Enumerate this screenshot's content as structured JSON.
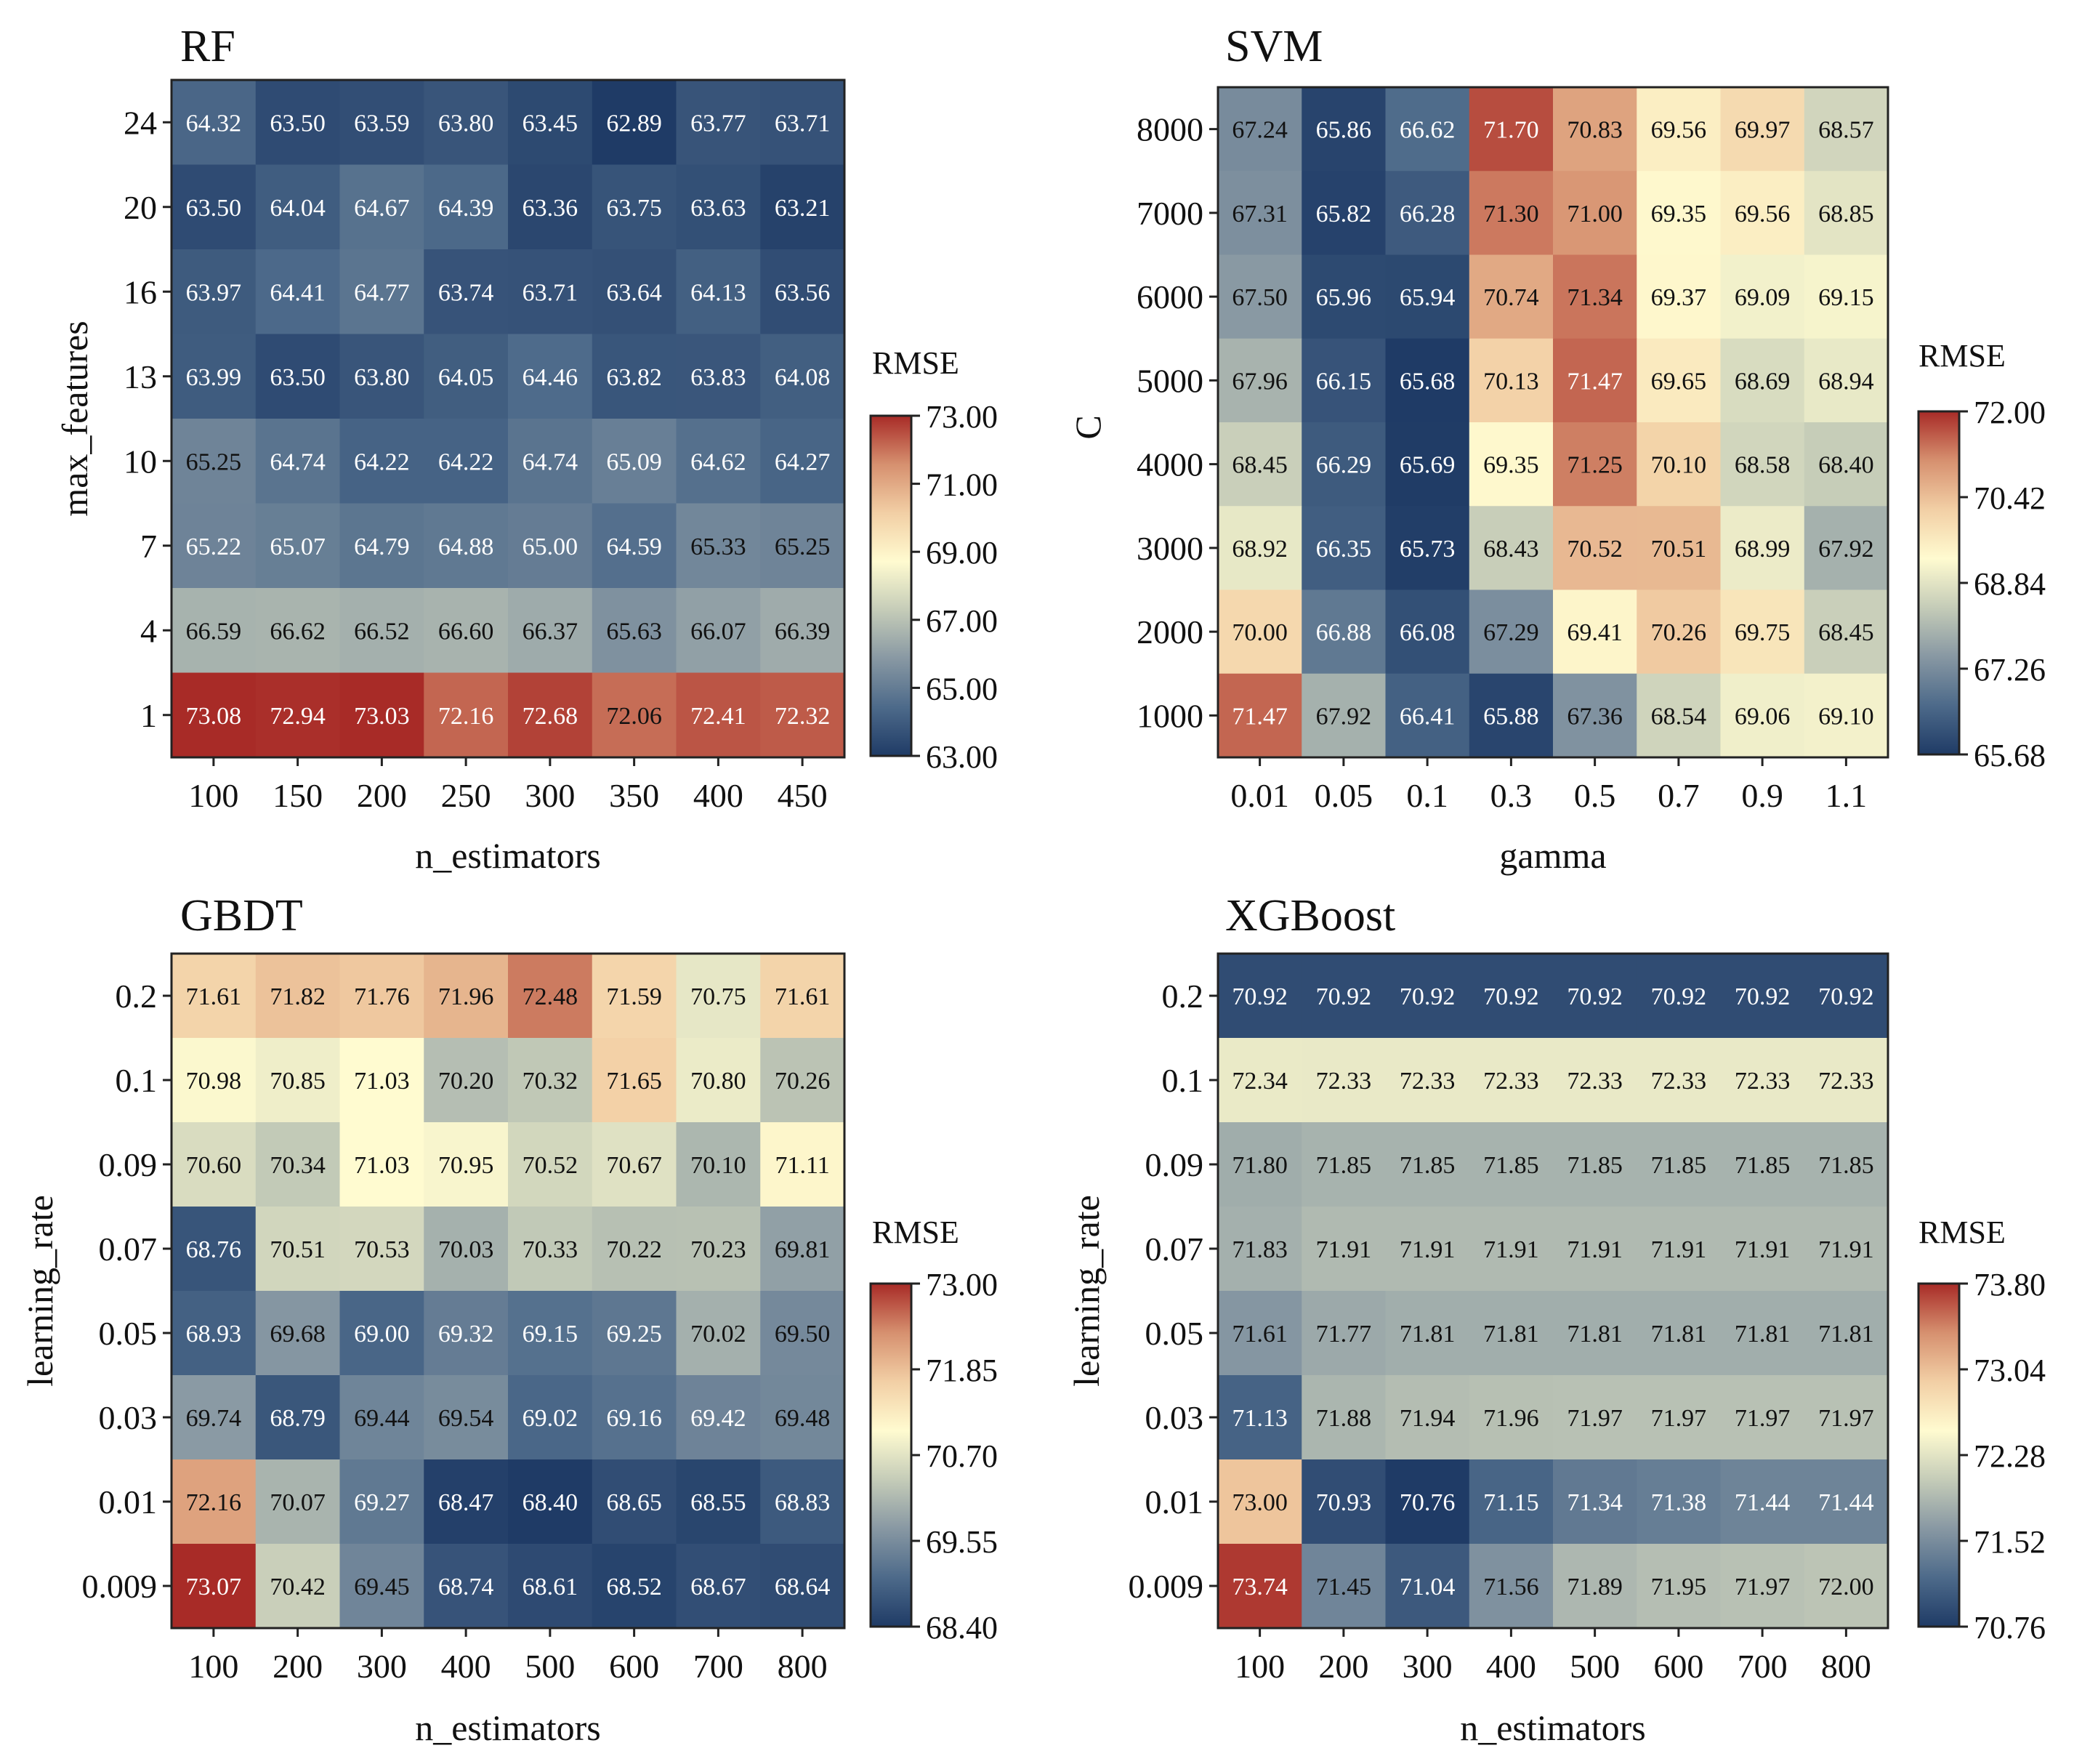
{
  "colormap": [
    "#1f3b66",
    "#4d6a8a",
    "#8898a3",
    "#c5ccb8",
    "#fffbd0",
    "#f2cfa5",
    "#d6906f",
    "#a82b27"
  ],
  "text_colors": {
    "dark": "#ffffff",
    "light": "#111111"
  },
  "chart_data": [
    {
      "id": "rf",
      "type": "heatmap",
      "title": "RF",
      "xlabel": "n_estimators",
      "ylabel": "max_features",
      "x_categories": [
        "100",
        "150",
        "200",
        "250",
        "300",
        "350",
        "400",
        "450"
      ],
      "y_categories": [
        "24",
        "20",
        "16",
        "13",
        "10",
        "7",
        "4",
        "1"
      ],
      "values": [
        [
          64.32,
          63.5,
          63.59,
          63.8,
          63.45,
          62.89,
          63.77,
          63.71
        ],
        [
          63.5,
          64.04,
          64.67,
          64.39,
          63.36,
          63.75,
          63.63,
          63.21
        ],
        [
          63.97,
          64.41,
          64.77,
          63.74,
          63.71,
          63.64,
          64.13,
          63.56
        ],
        [
          63.99,
          63.5,
          63.8,
          64.05,
          64.46,
          63.82,
          63.83,
          64.08
        ],
        [
          65.25,
          64.74,
          64.22,
          64.22,
          64.74,
          65.09,
          64.62,
          64.27
        ],
        [
          65.22,
          65.07,
          64.79,
          64.88,
          65.0,
          64.59,
          65.33,
          65.25
        ],
        [
          66.59,
          66.62,
          66.52,
          66.6,
          66.37,
          65.63,
          66.07,
          66.39
        ],
        [
          73.08,
          72.94,
          73.03,
          72.16,
          72.68,
          72.06,
          72.41,
          72.32
        ]
      ],
      "colorbar": {
        "title": "RMSE",
        "vmin": 63.0,
        "vmax": 73.0,
        "ticks": [
          "63.00",
          "65.00",
          "67.00",
          "69.00",
          "71.00",
          "73.00"
        ]
      }
    },
    {
      "id": "svm",
      "type": "heatmap",
      "title": "SVM",
      "xlabel": "gamma",
      "ylabel": "C",
      "x_categories": [
        "0.01",
        "0.05",
        "0.1",
        "0.3",
        "0.5",
        "0.7",
        "0.9",
        "1.1"
      ],
      "y_categories": [
        "8000",
        "7000",
        "6000",
        "5000",
        "4000",
        "3000",
        "2000",
        "1000"
      ],
      "values": [
        [
          67.24,
          65.86,
          66.62,
          71.7,
          70.83,
          69.56,
          69.97,
          68.57
        ],
        [
          67.31,
          65.82,
          66.28,
          71.3,
          71.0,
          69.35,
          69.56,
          68.85
        ],
        [
          67.5,
          65.96,
          65.94,
          70.74,
          71.34,
          69.37,
          69.09,
          69.15
        ],
        [
          67.96,
          66.15,
          65.68,
          70.13,
          71.47,
          69.65,
          68.69,
          68.94
        ],
        [
          68.45,
          66.29,
          65.69,
          69.35,
          71.25,
          70.1,
          68.58,
          68.4
        ],
        [
          68.92,
          66.35,
          65.73,
          68.43,
          70.52,
          70.51,
          68.99,
          67.92
        ],
        [
          70.0,
          66.88,
          66.08,
          67.29,
          69.41,
          70.26,
          69.75,
          68.45
        ],
        [
          71.47,
          67.92,
          66.41,
          65.88,
          67.36,
          68.54,
          69.06,
          69.1
        ]
      ],
      "colorbar": {
        "title": "RMSE",
        "vmin": 65.68,
        "vmax": 72.0,
        "ticks": [
          "65.68",
          "67.26",
          "68.84",
          "70.42",
          "72.00"
        ]
      }
    },
    {
      "id": "gbdt",
      "type": "heatmap",
      "title": "GBDT",
      "xlabel": "n_estimators",
      "ylabel": "learning_rate",
      "x_categories": [
        "100",
        "200",
        "300",
        "400",
        "500",
        "600",
        "700",
        "800"
      ],
      "y_categories": [
        "0.2",
        "0.1",
        "0.09",
        "0.07",
        "0.05",
        "0.03",
        "0.01",
        "0.009"
      ],
      "values": [
        [
          71.61,
          71.82,
          71.76,
          71.96,
          72.48,
          71.59,
          70.75,
          71.61
        ],
        [
          70.98,
          70.85,
          71.03,
          70.2,
          70.32,
          71.65,
          70.8,
          70.26
        ],
        [
          70.6,
          70.34,
          71.03,
          70.95,
          70.52,
          70.67,
          70.1,
          71.11
        ],
        [
          68.76,
          70.51,
          70.53,
          70.03,
          70.33,
          70.22,
          70.23,
          69.81
        ],
        [
          68.93,
          69.68,
          69.0,
          69.32,
          69.15,
          69.25,
          70.02,
          69.5
        ],
        [
          69.74,
          68.79,
          69.44,
          69.54,
          69.02,
          69.16,
          69.42,
          69.48
        ],
        [
          72.16,
          70.07,
          69.27,
          68.47,
          68.4,
          68.65,
          68.55,
          68.83
        ],
        [
          73.07,
          70.42,
          69.45,
          68.74,
          68.61,
          68.52,
          68.67,
          68.64
        ]
      ],
      "colorbar": {
        "title": "RMSE",
        "vmin": 68.4,
        "vmax": 73.0,
        "ticks": [
          "68.40",
          "69.55",
          "70.70",
          "71.85",
          "73.00"
        ]
      }
    },
    {
      "id": "xgboost",
      "type": "heatmap",
      "title": "XGBoost",
      "xlabel": "n_estimators",
      "ylabel": "learning_rate",
      "x_categories": [
        "100",
        "200",
        "300",
        "400",
        "500",
        "600",
        "700",
        "800"
      ],
      "y_categories": [
        "0.2",
        "0.1",
        "0.09",
        "0.07",
        "0.05",
        "0.03",
        "0.01",
        "0.009"
      ],
      "values": [
        [
          70.92,
          70.92,
          70.92,
          70.92,
          70.92,
          70.92,
          70.92,
          70.92
        ],
        [
          72.34,
          72.33,
          72.33,
          72.33,
          72.33,
          72.33,
          72.33,
          72.33
        ],
        [
          71.8,
          71.85,
          71.85,
          71.85,
          71.85,
          71.85,
          71.85,
          71.85
        ],
        [
          71.83,
          71.91,
          71.91,
          71.91,
          71.91,
          71.91,
          71.91,
          71.91
        ],
        [
          71.61,
          71.77,
          71.81,
          71.81,
          71.81,
          71.81,
          71.81,
          71.81
        ],
        [
          71.13,
          71.88,
          71.94,
          71.96,
          71.97,
          71.97,
          71.97,
          71.97
        ],
        [
          73.0,
          70.93,
          70.76,
          71.15,
          71.34,
          71.38,
          71.44,
          71.44
        ],
        [
          73.74,
          71.45,
          71.04,
          71.56,
          71.89,
          71.95,
          71.97,
          72.0
        ]
      ],
      "colorbar": {
        "title": "RMSE",
        "vmin": 70.76,
        "vmax": 73.8,
        "ticks": [
          "70.76",
          "71.52",
          "72.28",
          "73.04",
          "73.80"
        ]
      }
    }
  ]
}
